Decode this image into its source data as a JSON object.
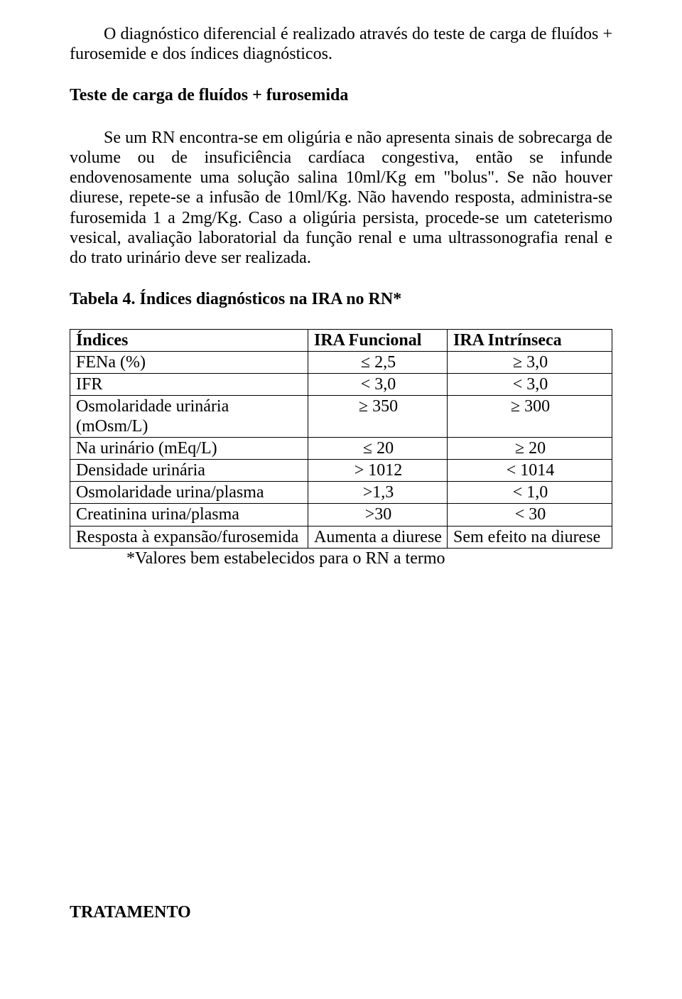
{
  "para1": "O diagnóstico diferencial é realizado através do teste de carga de fluídos + furosemide e dos índices diagnósticos.",
  "heading": "Teste de carga de fluídos + furosemida",
  "para2": "Se um RN encontra-se em oligúria e não apresenta sinais de sobrecarga de volume ou de insuficiência cardíaca congestiva, então se infunde endovenosamente uma solução salina 10ml/Kg em \"bolus\". Se não houver diurese, repete-se a infusão de 10ml/Kg. Não havendo resposta, administra-se furosemida 1 a 2mg/Kg. Caso a oligúria persista, procede-se um  cateterismo vesical,  avaliação laboratorial da função renal e uma ultrassonografia  renal e do trato urinário deve ser realizada.",
  "tabela_caption": "Tabela 4. Índices diagnósticos na IRA no RN*",
  "table": {
    "header": [
      "Índices",
      "IRA Funcional",
      "IRA Intrínseca"
    ],
    "rows": [
      [
        "FENa (%)",
        "≤   2,5",
        "≥  3,0"
      ],
      [
        "IFR",
        "<   3,0",
        "<  3,0"
      ],
      [
        "Osmolaridade urinária (mOsm/L)",
        "≥   350",
        "≥  300"
      ],
      [
        "Na  urinário (mEq/L)",
        "≤   20",
        "≥  20"
      ],
      [
        "Densidade urinária",
        ">  1012",
        "<  1014"
      ],
      [
        "Osmolaridade urina/plasma",
        ">1,3",
        "< 1,0"
      ],
      [
        "Creatinina urina/plasma",
        ">30",
        "< 30"
      ],
      [
        "Resposta à expansão/furosemida",
        "Aumenta a diurese",
        "Sem efeito na diurese"
      ]
    ]
  },
  "footnote": "*Valores bem estabelecidos  para o RN a termo",
  "tratamento": "TRATAMENTO"
}
